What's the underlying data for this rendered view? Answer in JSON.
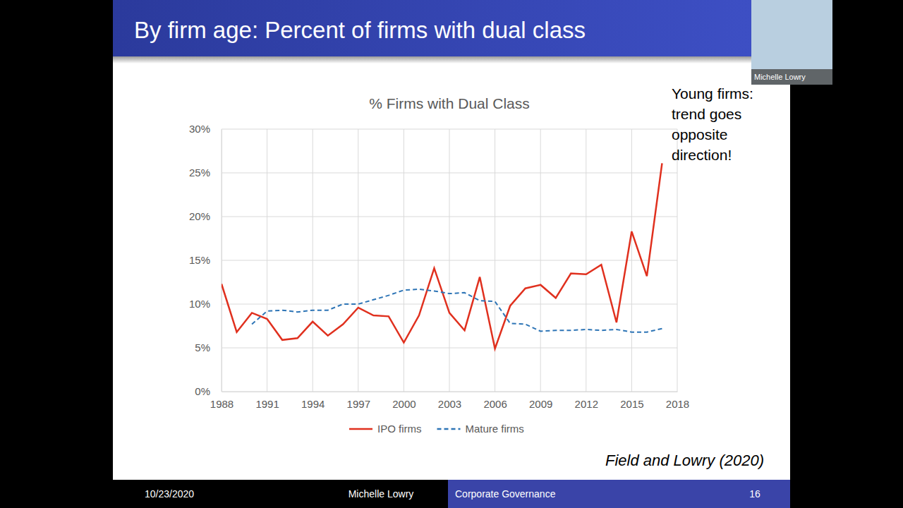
{
  "slide": {
    "heading": "By firm age: Percent of firms with dual class",
    "annotation": "Young firms: trend goes opposite direction!",
    "source": "Field and Lowry (2020)",
    "webcam_label": "Michelle Lowry",
    "footer": {
      "date": "10/23/2020",
      "presenter": "Michelle Lowry",
      "course": "Corporate Governance",
      "page": "16"
    }
  },
  "chart_data": {
    "type": "line",
    "title": "% Firms with Dual Class",
    "x": [
      1988,
      1989,
      1990,
      1991,
      1992,
      1993,
      1994,
      1995,
      1996,
      1997,
      1998,
      1999,
      2000,
      2001,
      2002,
      2003,
      2004,
      2005,
      2006,
      2007,
      2008,
      2009,
      2010,
      2011,
      2012,
      2013,
      2014,
      2015,
      2016,
      2017
    ],
    "series": [
      {
        "name": "IPO firms",
        "color": "#e0301e",
        "line_style": "solid",
        "values": [
          12.3,
          6.8,
          9.0,
          8.3,
          5.9,
          6.1,
          8.0,
          6.4,
          7.7,
          9.6,
          8.7,
          8.6,
          5.6,
          8.7,
          14.1,
          9.0,
          7.0,
          13.1,
          4.9,
          9.8,
          11.8,
          12.2,
          10.7,
          13.5,
          13.4,
          14.5,
          7.9,
          18.3,
          13.2,
          26.1
        ]
      },
      {
        "name": "Mature firms",
        "color": "#2e75b6",
        "line_style": "dashed",
        "values": [
          null,
          null,
          7.7,
          9.2,
          9.3,
          9.1,
          9.3,
          9.3,
          10.0,
          10.0,
          10.5,
          11.0,
          11.6,
          11.7,
          11.5,
          11.2,
          11.3,
          10.4,
          10.3,
          7.8,
          7.7,
          6.9,
          7.0,
          7.0,
          7.1,
          7.0,
          7.1,
          6.8,
          6.8,
          7.2
        ]
      }
    ],
    "xlim": [
      1988,
      2018
    ],
    "xticks": [
      1988,
      1991,
      1994,
      1997,
      2000,
      2003,
      2006,
      2009,
      2012,
      2015,
      2018
    ],
    "ylim": [
      0,
      30
    ],
    "yticks": [
      {
        "value": 0,
        "label": "0%"
      },
      {
        "value": 5,
        "label": "5%"
      },
      {
        "value": 10,
        "label": "10%"
      },
      {
        "value": 15,
        "label": "15%"
      },
      {
        "value": 20,
        "label": "20%"
      },
      {
        "value": 25,
        "label": "25%"
      },
      {
        "value": 30,
        "label": "30%"
      }
    ],
    "grid": true,
    "legend": "bottom"
  }
}
